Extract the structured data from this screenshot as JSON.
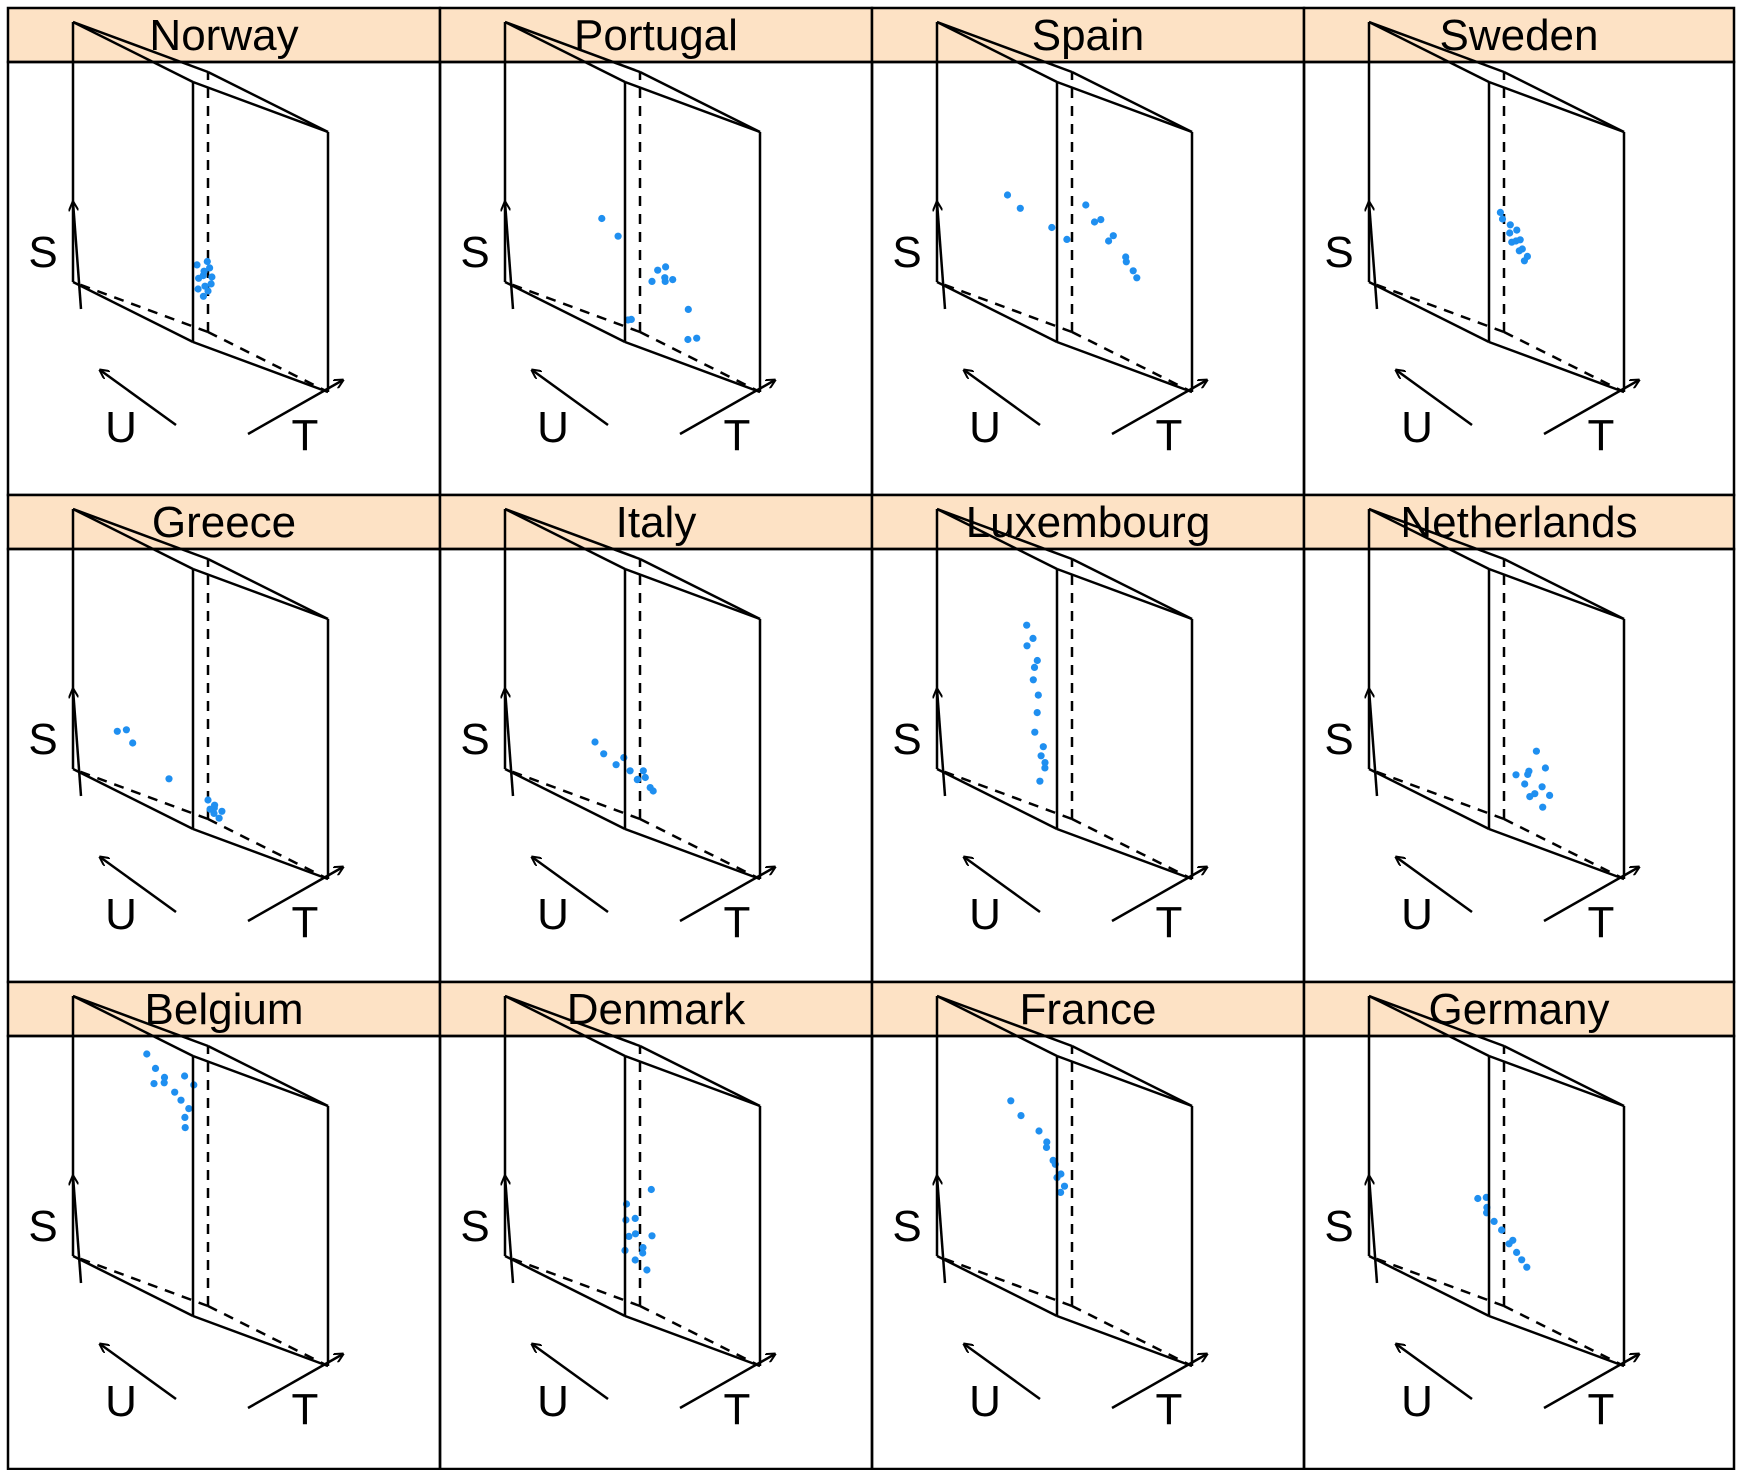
{
  "chart_data": {
    "type": "scatter",
    "layout": {
      "columns": 4,
      "rows": 3
    },
    "axis_labels": {
      "x": "T",
      "y": "U",
      "z": "S"
    },
    "colors": {
      "strip": "#fde2c5",
      "points": "#1f8ff0",
      "frame": "#000000"
    },
    "panels": [
      {
        "name": "Norway",
        "points": [
          [
            0.45,
            0.47,
            0.22
          ],
          [
            0.52,
            0.45,
            0.28
          ],
          [
            0.48,
            0.5,
            0.18
          ],
          [
            0.5,
            0.48,
            0.24
          ],
          [
            0.55,
            0.46,
            0.25
          ],
          [
            0.47,
            0.44,
            0.2
          ],
          [
            0.53,
            0.5,
            0.26
          ],
          [
            0.49,
            0.47,
            0.16
          ],
          [
            0.51,
            0.43,
            0.22
          ],
          [
            0.46,
            0.49,
            0.27
          ],
          [
            0.54,
            0.48,
            0.19
          ],
          [
            0.5,
            0.45,
            0.3
          ]
        ]
      },
      {
        "name": "Portugal",
        "points": [
          [
            0.3,
            0.55,
            0.4
          ],
          [
            0.38,
            0.5,
            0.36
          ],
          [
            0.62,
            0.42,
            0.3
          ],
          [
            0.66,
            0.4,
            0.27
          ],
          [
            0.7,
            0.38,
            0.29
          ],
          [
            0.6,
            0.35,
            0.28
          ],
          [
            0.72,
            0.45,
            0.33
          ],
          [
            0.74,
            0.3,
            0.2
          ],
          [
            0.68,
            0.25,
            0.08
          ],
          [
            0.72,
            0.22,
            0.1
          ],
          [
            0.35,
            0.4,
            0.05
          ],
          [
            0.4,
            0.42,
            0.06
          ],
          [
            0.64,
            0.48,
            0.25
          ]
        ]
      },
      {
        "name": "Spain",
        "points": [
          [
            0.25,
            0.7,
            0.45
          ],
          [
            0.3,
            0.65,
            0.42
          ],
          [
            0.45,
            0.55,
            0.4
          ],
          [
            0.52,
            0.5,
            0.38
          ],
          [
            0.7,
            0.52,
            0.55
          ],
          [
            0.78,
            0.48,
            0.52
          ],
          [
            0.85,
            0.45,
            0.48
          ],
          [
            0.92,
            0.42,
            0.42
          ],
          [
            0.96,
            0.4,
            0.38
          ],
          [
            0.88,
            0.38,
            0.4
          ],
          [
            0.8,
            0.44,
            0.45
          ],
          [
            0.99,
            0.4,
            0.36
          ],
          [
            0.75,
            0.5,
            0.5
          ]
        ]
      },
      {
        "name": "Sweden",
        "points": [
          [
            0.42,
            0.4,
            0.48
          ],
          [
            0.48,
            0.38,
            0.45
          ],
          [
            0.52,
            0.42,
            0.42
          ],
          [
            0.55,
            0.4,
            0.4
          ],
          [
            0.58,
            0.38,
            0.38
          ],
          [
            0.6,
            0.36,
            0.36
          ],
          [
            0.5,
            0.35,
            0.44
          ],
          [
            0.56,
            0.44,
            0.39
          ],
          [
            0.62,
            0.4,
            0.34
          ],
          [
            0.46,
            0.42,
            0.46
          ],
          [
            0.54,
            0.36,
            0.41
          ],
          [
            0.6,
            0.42,
            0.37
          ]
        ]
      },
      {
        "name": "Greece",
        "points": [
          [
            0.2,
            0.85,
            0.22
          ],
          [
            0.22,
            0.8,
            0.24
          ],
          [
            0.25,
            0.78,
            0.2
          ],
          [
            0.35,
            0.6,
            0.12
          ],
          [
            0.45,
            0.4,
            0.1
          ],
          [
            0.48,
            0.38,
            0.08
          ],
          [
            0.5,
            0.4,
            0.06
          ],
          [
            0.46,
            0.36,
            0.09
          ],
          [
            0.52,
            0.38,
            0.05
          ],
          [
            0.49,
            0.42,
            0.07
          ],
          [
            0.51,
            0.35,
            0.08
          ]
        ]
      },
      {
        "name": "Italy",
        "points": [
          [
            0.3,
            0.6,
            0.25
          ],
          [
            0.35,
            0.58,
            0.22
          ],
          [
            0.42,
            0.55,
            0.2
          ],
          [
            0.48,
            0.5,
            0.2
          ],
          [
            0.52,
            0.48,
            0.18
          ],
          [
            0.55,
            0.45,
            0.2
          ],
          [
            0.58,
            0.44,
            0.17
          ],
          [
            0.5,
            0.42,
            0.22
          ],
          [
            0.45,
            0.52,
            0.24
          ],
          [
            0.56,
            0.4,
            0.16
          ],
          [
            0.54,
            0.5,
            0.18
          ]
        ]
      },
      {
        "name": "Luxembourg",
        "points": [
          [
            0.32,
            0.62,
            0.7
          ],
          [
            0.35,
            0.6,
            0.66
          ],
          [
            0.3,
            0.6,
            0.62
          ],
          [
            0.34,
            0.58,
            0.55
          ],
          [
            0.33,
            0.58,
            0.5
          ],
          [
            0.36,
            0.57,
            0.45
          ],
          [
            0.34,
            0.56,
            0.38
          ],
          [
            0.32,
            0.56,
            0.3
          ],
          [
            0.38,
            0.55,
            0.26
          ],
          [
            0.35,
            0.54,
            0.22
          ],
          [
            0.37,
            0.53,
            0.18
          ],
          [
            0.34,
            0.54,
            0.12
          ],
          [
            0.36,
            0.52,
            0.2
          ],
          [
            0.33,
            0.55,
            0.58
          ]
        ]
      },
      {
        "name": "Netherlands",
        "points": [
          [
            0.55,
            0.4,
            0.22
          ],
          [
            0.6,
            0.38,
            0.2
          ],
          [
            0.65,
            0.35,
            0.18
          ],
          [
            0.7,
            0.34,
            0.22
          ],
          [
            0.75,
            0.36,
            0.3
          ],
          [
            0.72,
            0.4,
            0.35
          ],
          [
            0.68,
            0.42,
            0.26
          ],
          [
            0.62,
            0.36,
            0.16
          ],
          [
            0.74,
            0.32,
            0.2
          ],
          [
            0.66,
            0.3,
            0.14
          ],
          [
            0.58,
            0.34,
            0.24
          ]
        ]
      },
      {
        "name": "Belgium",
        "points": [
          [
            0.3,
            0.72,
            0.9
          ],
          [
            0.35,
            0.7,
            0.86
          ],
          [
            0.4,
            0.68,
            0.82
          ],
          [
            0.45,
            0.6,
            0.78
          ],
          [
            0.5,
            0.55,
            0.86
          ],
          [
            0.42,
            0.62,
            0.8
          ],
          [
            0.38,
            0.66,
            0.84
          ],
          [
            0.46,
            0.58,
            0.72
          ],
          [
            0.44,
            0.56,
            0.68
          ],
          [
            0.48,
            0.6,
            0.88
          ],
          [
            0.36,
            0.72,
            0.8
          ],
          [
            0.47,
            0.56,
            0.76
          ]
        ]
      },
      {
        "name": "Denmark",
        "points": [
          [
            0.45,
            0.5,
            0.4
          ],
          [
            0.5,
            0.48,
            0.36
          ],
          [
            0.48,
            0.46,
            0.3
          ],
          [
            0.52,
            0.44,
            0.26
          ],
          [
            0.46,
            0.52,
            0.22
          ],
          [
            0.5,
            0.48,
            0.2
          ],
          [
            0.54,
            0.46,
            0.24
          ],
          [
            0.47,
            0.5,
            0.28
          ],
          [
            0.53,
            0.42,
            0.18
          ],
          [
            0.49,
            0.54,
            0.34
          ],
          [
            0.6,
            0.45,
            0.5
          ],
          [
            0.55,
            0.4,
            0.32
          ]
        ]
      },
      {
        "name": "France",
        "points": [
          [
            0.3,
            0.72,
            0.72
          ],
          [
            0.34,
            0.68,
            0.68
          ],
          [
            0.4,
            0.6,
            0.65
          ],
          [
            0.44,
            0.58,
            0.6
          ],
          [
            0.48,
            0.55,
            0.55
          ],
          [
            0.46,
            0.52,
            0.5
          ],
          [
            0.5,
            0.5,
            0.48
          ],
          [
            0.45,
            0.54,
            0.56
          ],
          [
            0.42,
            0.56,
            0.62
          ],
          [
            0.49,
            0.52,
            0.45
          ],
          [
            0.47,
            0.5,
            0.52
          ]
        ]
      },
      {
        "name": "Germany",
        "points": [
          [
            0.4,
            0.55,
            0.4
          ],
          [
            0.44,
            0.52,
            0.36
          ],
          [
            0.48,
            0.5,
            0.34
          ],
          [
            0.52,
            0.48,
            0.32
          ],
          [
            0.56,
            0.46,
            0.28
          ],
          [
            0.6,
            0.44,
            0.26
          ],
          [
            0.62,
            0.42,
            0.24
          ],
          [
            0.46,
            0.54,
            0.42
          ],
          [
            0.58,
            0.45,
            0.3
          ],
          [
            0.64,
            0.4,
            0.22
          ],
          [
            0.42,
            0.5,
            0.38
          ]
        ]
      }
    ]
  }
}
